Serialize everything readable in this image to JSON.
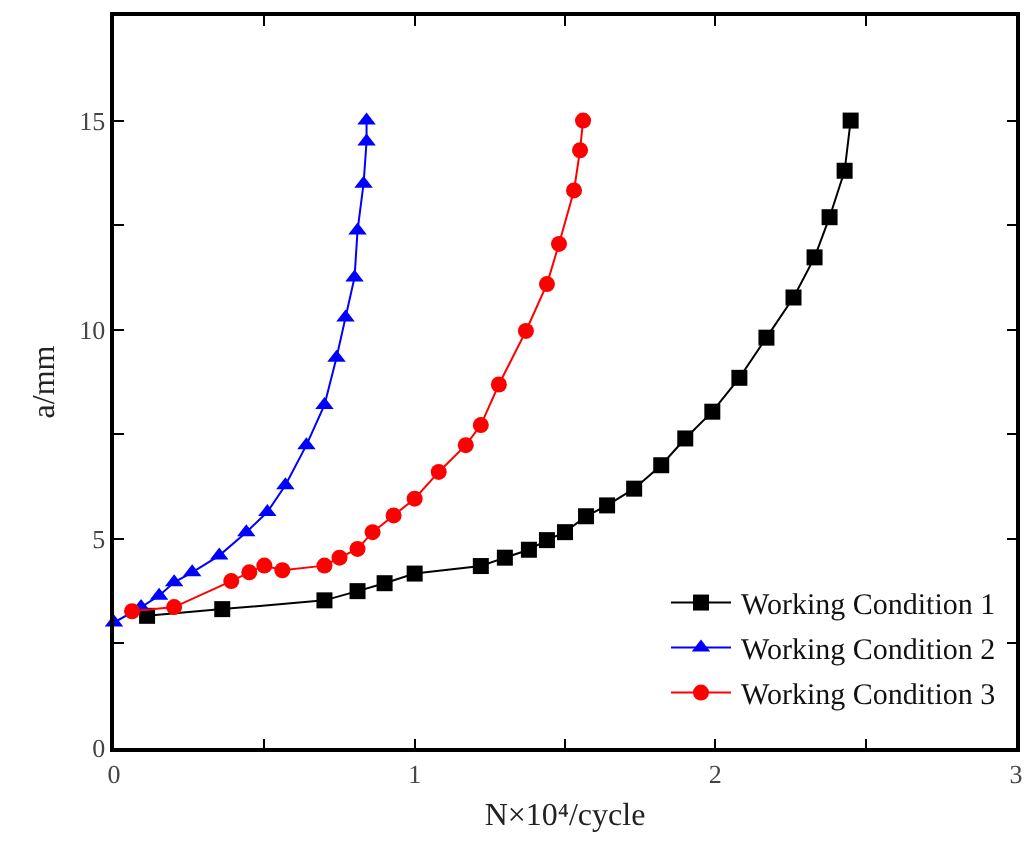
{
  "chart_data": {
    "type": "line",
    "xlabel": "N×10⁴/cycle",
    "ylabel": "a/mm",
    "xlim": [
      0,
      3
    ],
    "ylim": [
      0,
      17.5
    ],
    "xticks": [
      0,
      {
        "value": 0.5,
        "label": null
      },
      1,
      {
        "value": 1.5,
        "label": null
      },
      2,
      {
        "value": 2.5,
        "label": null
      },
      3
    ],
    "yticks": [
      0,
      {
        "value": 2.5,
        "label": null
      },
      5,
      {
        "value": 7.5,
        "label": null
      },
      10,
      {
        "value": 12.5,
        "label": null
      },
      15,
      {
        "value": 17.5,
        "label": null
      }
    ],
    "grid": false,
    "legend": "bottom right",
    "line_style": "solid",
    "series": [
      {
        "name": "Working Condition 1",
        "color": "#000000",
        "marker": "square",
        "x": [
          0.11,
          0.36,
          0.7,
          0.81,
          0.9,
          1.0,
          1.22,
          1.3,
          1.38,
          1.44,
          1.5,
          1.57,
          1.64,
          1.73,
          1.82,
          1.9,
          1.99,
          2.08,
          2.17,
          2.26,
          2.33,
          2.38,
          2.43,
          2.45
        ],
        "values": [
          3.16,
          3.32,
          3.53,
          3.75,
          3.94,
          4.17,
          4.35,
          4.55,
          4.74,
          4.97,
          5.16,
          5.54,
          5.8,
          6.2,
          6.76,
          7.4,
          8.04,
          8.85,
          9.81,
          10.77,
          11.73,
          12.69,
          13.8,
          15.0
        ]
      },
      {
        "name": "Working Condition 2",
        "color": "#0000ff",
        "marker": "triangle",
        "x": [
          0,
          0.09,
          0.15,
          0.2,
          0.26,
          0.35,
          0.44,
          0.51,
          0.57,
          0.64,
          0.7,
          0.74,
          0.77,
          0.8,
          0.81,
          0.83,
          0.84,
          0.84
        ],
        "values": [
          3.0,
          3.37,
          3.64,
          3.96,
          4.2,
          4.6,
          5.16,
          5.64,
          6.28,
          7.24,
          8.2,
          9.33,
          10.29,
          11.25,
          12.37,
          13.49,
          14.5,
          15.0
        ]
      },
      {
        "name": "Working Condition 3",
        "color": "#ff0000",
        "marker": "circle",
        "x": [
          0.06,
          0.2,
          0.39,
          0.45,
          0.5,
          0.56,
          0.7,
          0.75,
          0.81,
          0.86,
          0.93,
          1.0,
          1.08,
          1.17,
          1.22,
          1.28,
          1.37,
          1.44,
          1.48,
          1.53,
          1.55,
          1.56
        ],
        "values": [
          3.27,
          3.37,
          3.99,
          4.2,
          4.36,
          4.25,
          4.36,
          4.55,
          4.76,
          5.16,
          5.56,
          5.96,
          6.6,
          7.24,
          7.72,
          8.69,
          9.97,
          11.09,
          12.05,
          13.33,
          14.29,
          15.0
        ]
      }
    ]
  }
}
